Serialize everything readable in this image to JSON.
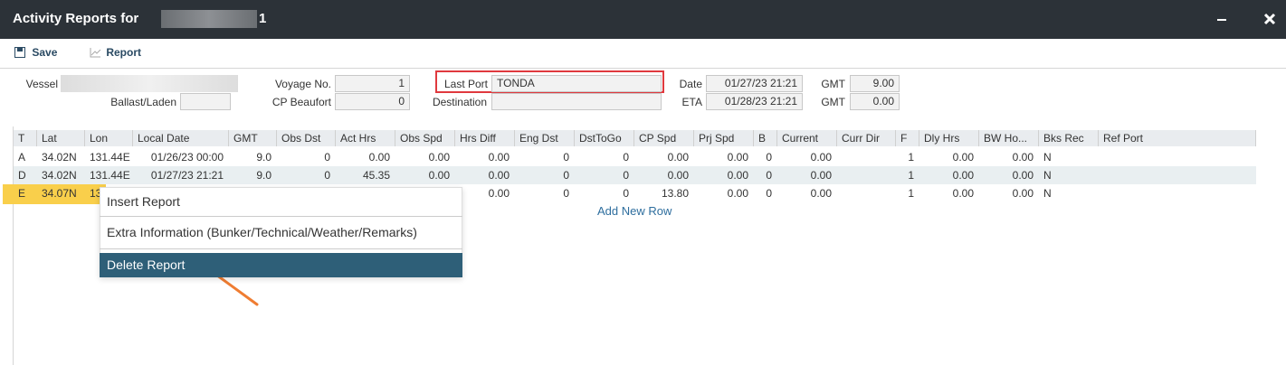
{
  "header": {
    "title": "Activity Reports for",
    "title_suffix": "1"
  },
  "toolbar": {
    "save": "Save",
    "report": "Report"
  },
  "form": {
    "fields": [
      {
        "label": "Vessel"
      },
      {
        "label": "Ballast/Laden"
      },
      {
        "label": "Voyage No.",
        "value": "1"
      },
      {
        "label": "CP Beaufort",
        "value": "0"
      },
      {
        "label": "Last Port",
        "value": "TONDA"
      },
      {
        "label": "Destination"
      },
      {
        "label": "Date",
        "value": "01/27/23 21:21"
      },
      {
        "label": "ETA",
        "value": "01/28/23 21:21"
      },
      {
        "label": "GMT",
        "value": "9.00"
      },
      {
        "label": "GMT",
        "value": "0.00"
      }
    ]
  },
  "table": {
    "columns": [
      "T",
      "Lat",
      "Lon",
      "Local Date",
      "GMT",
      "Obs Dst",
      "Act Hrs",
      "Obs Spd",
      "Hrs Diff",
      "Eng Dst",
      "DstToGo",
      "CP Spd",
      "Prj Spd",
      "B",
      "Current",
      "Curr Dir",
      "F",
      "Dly Hrs",
      "BW Ho...",
      "Bks Rec",
      "Ref Port"
    ],
    "rows": [
      [
        "A",
        "34.02N",
        "131.44E",
        "01/26/23 00:00",
        "9.0",
        "0",
        "0.00",
        "0.00",
        "0.00",
        "0",
        "0",
        "0.00",
        "0.00",
        "0",
        "0.00",
        null,
        "1",
        "0.00",
        "0.00",
        "N",
        null
      ],
      [
        "D",
        "34.02N",
        "131.44E",
        "01/27/23 21:21",
        "9.0",
        "0",
        "45.35",
        "0.00",
        "0.00",
        "0",
        "0",
        "0.00",
        "0.00",
        "0",
        "0.00",
        null,
        "1",
        "0.00",
        "0.00",
        "N",
        null
      ],
      [
        "E",
        "34.07N",
        "13",
        null,
        null,
        null,
        null,
        null,
        "0.00",
        "0",
        "0",
        "13.80",
        "0.00",
        "0",
        "0.00",
        null,
        "1",
        "0.00",
        "0.00",
        "N",
        null
      ]
    ],
    "add_row": "Add New Row"
  },
  "context_menu": {
    "items": [
      "Insert Report",
      "Extra Information (Bunker/Technical/Weather/Remarks)",
      "Delete Report"
    ],
    "selected": 2
  }
}
